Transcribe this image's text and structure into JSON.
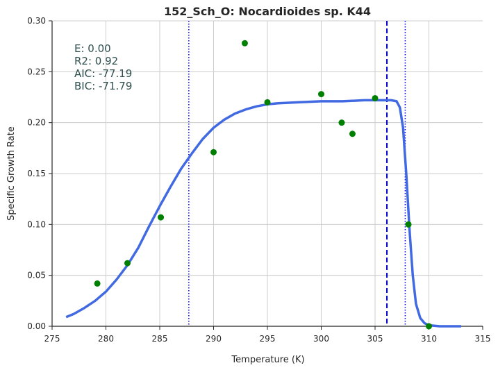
{
  "chart_data": {
    "type": "scatter",
    "title": "152_Sch_O: Nocardioides sp. K44",
    "xlabel": "Temperature (K)",
    "ylabel": "Specific Growth Rate",
    "xlim": [
      275,
      315
    ],
    "ylim": [
      0.0,
      0.3
    ],
    "x_ticks": [
      "275",
      "280",
      "285",
      "290",
      "295",
      "300",
      "305",
      "310",
      "315"
    ],
    "y_ticks": [
      "0.00",
      "0.05",
      "0.10",
      "0.15",
      "0.20",
      "0.25",
      "0.30"
    ],
    "grid": true,
    "legend": "none",
    "stats": [
      "E:  0.00",
      "R2:  0.92",
      "AIC: -77.19",
      "BIC: -71.79"
    ],
    "points": {
      "x": [
        279.2,
        282.0,
        285.1,
        290.0,
        292.9,
        295.0,
        300.0,
        301.9,
        302.9,
        305.0,
        308.1,
        310.0
      ],
      "y": [
        0.042,
        0.062,
        0.107,
        0.171,
        0.278,
        0.22,
        0.228,
        0.2,
        0.189,
        0.224,
        0.1,
        0.0
      ],
      "color": "#008000"
    },
    "fitted_curve": {
      "x": [
        276.3,
        277,
        278,
        279,
        280,
        281,
        282,
        283,
        284,
        285,
        286,
        287,
        288,
        289,
        290,
        291,
        292,
        293,
        294,
        295,
        296,
        298,
        300,
        302,
        304,
        305,
        306,
        306.5,
        307,
        307.3,
        307.6,
        307.9,
        308.2,
        308.5,
        308.8,
        309.2,
        309.6,
        310,
        311,
        312,
        313
      ],
      "y": [
        0.009,
        0.012,
        0.018,
        0.025,
        0.034,
        0.046,
        0.06,
        0.077,
        0.098,
        0.118,
        0.137,
        0.155,
        0.17,
        0.184,
        0.195,
        0.203,
        0.209,
        0.213,
        0.216,
        0.218,
        0.219,
        0.22,
        0.221,
        0.221,
        0.222,
        0.222,
        0.222,
        0.222,
        0.221,
        0.215,
        0.195,
        0.15,
        0.095,
        0.05,
        0.022,
        0.008,
        0.003,
        0.001,
        0.0,
        0.0,
        0.0
      ],
      "color": "#4169e1"
    },
    "vlines": [
      {
        "x": 287.7,
        "style": "dotted",
        "color": "#0000ff"
      },
      {
        "x": 306.1,
        "style": "dashed",
        "color": "#0000cd"
      },
      {
        "x": 307.8,
        "style": "dotted",
        "color": "#0000ff"
      }
    ]
  }
}
